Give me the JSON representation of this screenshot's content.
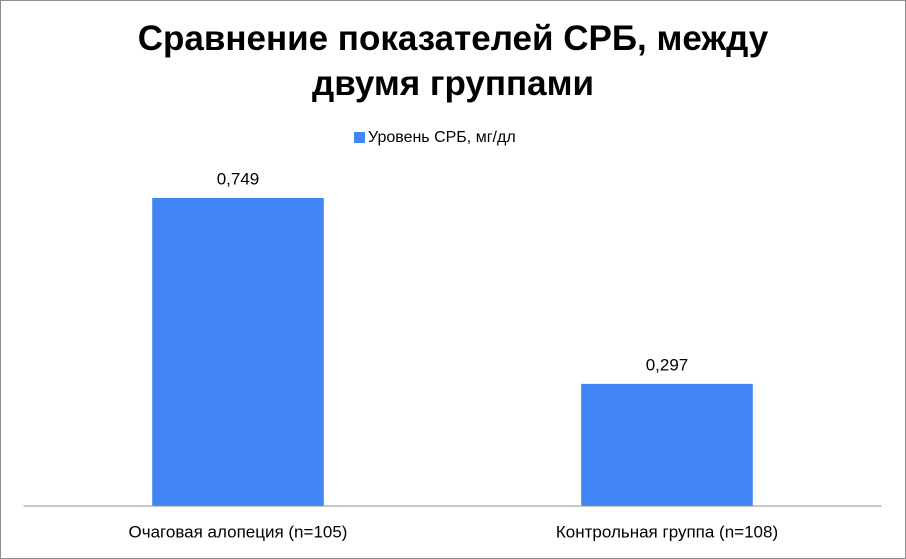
{
  "chart_data": {
    "type": "bar",
    "title": "Сравнение показателей СРБ, между двумя группами",
    "categories": [
      "Очаговая алопеция (n=105)",
      "Контрольная группа (n=108)"
    ],
    "series": [
      {
        "name": "Уровень СРБ, мг/дл",
        "color": "#4285f4",
        "values": [
          0.749,
          0.297
        ],
        "value_labels": [
          "0,749",
          "0,297"
        ]
      }
    ],
    "ylim": [
      0,
      0.8
    ],
    "legend": "top"
  }
}
